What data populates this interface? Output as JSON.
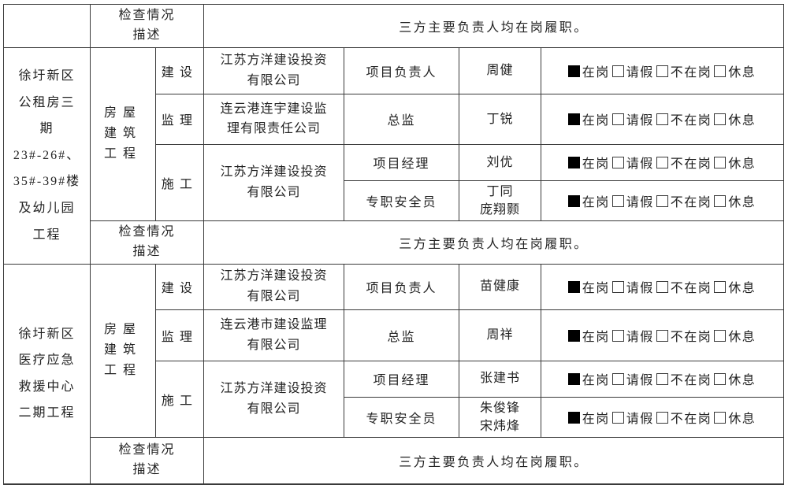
{
  "header_row": {
    "project": "",
    "inspection_label": "检查情况\n描述",
    "inspection_value": "三方主要负责人均在岗履职。"
  },
  "attendance": {
    "options": [
      {
        "label": "在岗",
        "checked": true
      },
      {
        "label": "请假",
        "checked": false
      },
      {
        "label": "不在岗",
        "checked": false
      },
      {
        "label": "休息",
        "checked": false
      }
    ]
  },
  "sections": [
    {
      "project": "徐圩新区\n公租房三\n期\n23#-26#、\n35#-39#楼\n及幼儿园\n工程",
      "type": "房屋\n建筑\n工程",
      "rows": [
        {
          "category": "建设",
          "company": "江苏方洋建设投资\n有限公司",
          "role": "项目负责人",
          "person": "周健"
        },
        {
          "category": "监理",
          "company": "连云港连宇建设监\n理有限责任公司",
          "role": "总监",
          "person": "丁锐"
        },
        {
          "category": "施工",
          "company": "江苏方洋建设投资\n有限公司",
          "role": "项目经理",
          "person": "刘优"
        },
        {
          "role": "专职安全员",
          "person": "丁同\n庞翔颢"
        }
      ],
      "inspection_label": "检查情况\n描述",
      "inspection_value": "三方主要负责人均在岗履职。"
    },
    {
      "project": "徐圩新区\n医疗应急\n救援中心\n二期工程",
      "type": "房屋\n建筑\n工程",
      "rows": [
        {
          "category": "建设",
          "company": "江苏方洋建设投资\n有限公司",
          "role": "项目负责人",
          "person": "苗健康"
        },
        {
          "category": "监理",
          "company": "连云港市建设监理\n有限公司",
          "role": "总监",
          "person": "周祥"
        },
        {
          "category": "施工",
          "company": "江苏方洋建设投资\n有限公司",
          "role": "项目经理",
          "person": "张建书"
        },
        {
          "role": "专职安全员",
          "person": "朱俊锋\n宋炜烽"
        }
      ],
      "inspection_label": "检查情况\n描述",
      "inspection_value": "三方主要负责人均在岗履职。"
    }
  ]
}
